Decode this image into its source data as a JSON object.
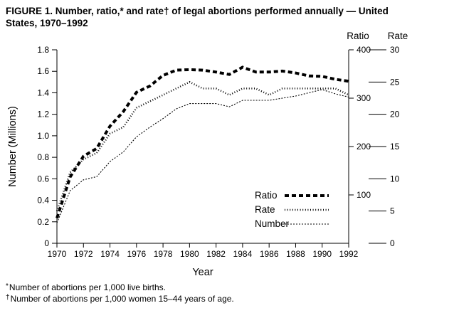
{
  "header": {
    "line1": "FIGURE 1. Number, ratio,* and rate† of legal abortions performed annually — United",
    "line2": "States, 1970–1992"
  },
  "footnotes": [
    {
      "marker": "*",
      "text": "Number of abortions per 1,000 live births."
    },
    {
      "marker": "†",
      "text": "Number of abortions per 1,000 women 15–44 years of age."
    }
  ],
  "chart_data": {
    "type": "line",
    "title": "FIGURE 1. Number, ratio,* and rate† of legal abortions performed annually — United States, 1970–1992",
    "xlabel": "Year",
    "ylabel": "Number (Millions)",
    "grid": false,
    "x": [
      1970,
      1971,
      1972,
      1973,
      1974,
      1975,
      1976,
      1977,
      1978,
      1979,
      1980,
      1981,
      1982,
      1983,
      1984,
      1985,
      1986,
      1987,
      1988,
      1989,
      1990,
      1991,
      1992
    ],
    "x_ticks": [
      1970,
      1972,
      1974,
      1976,
      1978,
      1980,
      1982,
      1984,
      1986,
      1988,
      1990,
      1992
    ],
    "axes": {
      "number": {
        "label": "Number (Millions)",
        "min": 0,
        "max": 1.8,
        "ticks": [
          0,
          0.2,
          0.4,
          0.6,
          0.8,
          1.0,
          1.2,
          1.4,
          1.6,
          1.8
        ]
      },
      "ratio": {
        "label": "Ratio",
        "min": 0,
        "max": 400,
        "ticks": [
          100,
          200,
          300,
          400
        ]
      },
      "rate": {
        "label": "Rate",
        "min": 0,
        "max": 30,
        "ticks": [
          0,
          5,
          10,
          15,
          20,
          25,
          30
        ]
      }
    },
    "series": [
      {
        "name": "Ratio",
        "axis": "ratio",
        "style": "thick-dashed",
        "values": [
          52,
          137,
          180,
          196,
          242,
          272,
          312,
          325,
          347,
          358,
          359,
          358,
          354,
          349,
          364,
          354,
          354,
          356,
          352,
          346,
          345,
          339,
          335
        ]
      },
      {
        "name": "Rate",
        "axis": "rate",
        "style": "dotted",
        "values": [
          5,
          11,
          13,
          14,
          17,
          18,
          21,
          22,
          23,
          24,
          25,
          24,
          24,
          23,
          24,
          24,
          23,
          24,
          24,
          24,
          24,
          24,
          23
        ]
      },
      {
        "name": "Number",
        "axis": "number",
        "style": "fine-dotted",
        "values": [
          0.19,
          0.49,
          0.59,
          0.62,
          0.76,
          0.85,
          0.99,
          1.08,
          1.16,
          1.25,
          1.3,
          1.3,
          1.3,
          1.27,
          1.33,
          1.33,
          1.33,
          1.35,
          1.37,
          1.4,
          1.43,
          1.39,
          1.36
        ]
      }
    ],
    "legend": {
      "position": "inside-right",
      "entries": [
        "Ratio",
        "Rate",
        "Number"
      ]
    }
  }
}
